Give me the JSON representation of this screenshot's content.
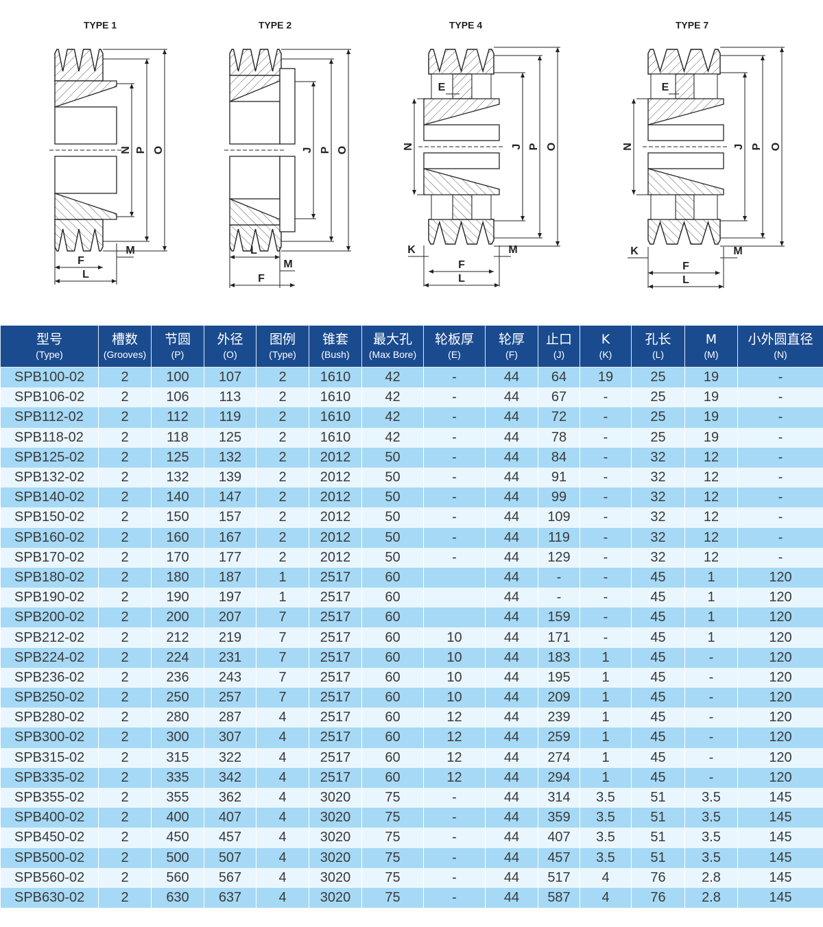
{
  "drawings": [
    {
      "title": "TYPE 1",
      "dims": [
        "N",
        "P",
        "O"
      ],
      "bottom": [
        "F",
        "L",
        "M"
      ]
    },
    {
      "title": "TYPE 2",
      "dims": [
        "J",
        "P",
        "O"
      ],
      "bottom": [
        "L",
        "M",
        "F"
      ]
    },
    {
      "title": "TYPE 4",
      "dims": [
        "N",
        "J",
        "P",
        "O"
      ],
      "bottom": [
        "E",
        "K",
        "M",
        "F",
        "L"
      ]
    },
    {
      "title": "TYPE 7",
      "dims": [
        "N",
        "J",
        "P",
        "O"
      ],
      "bottom": [
        "E",
        "K",
        "M",
        "F",
        "L"
      ]
    }
  ],
  "colors": {
    "header_bg": "#1a4b8f",
    "row_odd": "#a6d9f5",
    "row_even": "#eaf6fd"
  },
  "table": {
    "headers": [
      {
        "cn": "型号",
        "en": "(Type)"
      },
      {
        "cn": "槽数",
        "en": "(Grooves)"
      },
      {
        "cn": "节圆",
        "en": "(P)"
      },
      {
        "cn": "外径",
        "en": "(O)"
      },
      {
        "cn": "图例",
        "en": "(Type)"
      },
      {
        "cn": "锥套",
        "en": "(Bush)"
      },
      {
        "cn": "最大孔",
        "en": "(Max Bore)"
      },
      {
        "cn": "轮板厚",
        "en": "(E)"
      },
      {
        "cn": "轮厚",
        "en": "(F)"
      },
      {
        "cn": "止口",
        "en": "(J)"
      },
      {
        "cn": "K",
        "en": "(K)"
      },
      {
        "cn": "孔长",
        "en": "(L)"
      },
      {
        "cn": "M",
        "en": "(M)"
      },
      {
        "cn": "小外圆直径",
        "en": "(N)"
      }
    ],
    "rows": [
      [
        "SPB100-02",
        "2",
        "100",
        "107",
        "2",
        "1610",
        "42",
        "-",
        "44",
        "64",
        "19",
        "25",
        "19",
        "-"
      ],
      [
        "SPB106-02",
        "2",
        "106",
        "113",
        "2",
        "1610",
        "42",
        "-",
        "44",
        "67",
        "-",
        "25",
        "19",
        "-"
      ],
      [
        "SPB112-02",
        "2",
        "112",
        "119",
        "2",
        "1610",
        "42",
        "-",
        "44",
        "72",
        "-",
        "25",
        "19",
        "-"
      ],
      [
        "SPB118-02",
        "2",
        "118",
        "125",
        "2",
        "1610",
        "42",
        "-",
        "44",
        "78",
        "-",
        "25",
        "19",
        "-"
      ],
      [
        "SPB125-02",
        "2",
        "125",
        "132",
        "2",
        "2012",
        "50",
        "-",
        "44",
        "84",
        "-",
        "32",
        "12",
        "-"
      ],
      [
        "SPB132-02",
        "2",
        "132",
        "139",
        "2",
        "2012",
        "50",
        "-",
        "44",
        "91",
        "-",
        "32",
        "12",
        "-"
      ],
      [
        "SPB140-02",
        "2",
        "140",
        "147",
        "2",
        "2012",
        "50",
        "-",
        "44",
        "99",
        "-",
        "32",
        "12",
        "-"
      ],
      [
        "SPB150-02",
        "2",
        "150",
        "157",
        "2",
        "2012",
        "50",
        "-",
        "44",
        "109",
        "-",
        "32",
        "12",
        "-"
      ],
      [
        "SPB160-02",
        "2",
        "160",
        "167",
        "2",
        "2012",
        "50",
        "-",
        "44",
        "119",
        "-",
        "32",
        "12",
        "-"
      ],
      [
        "SPB170-02",
        "2",
        "170",
        "177",
        "2",
        "2012",
        "50",
        "-",
        "44",
        "129",
        "-",
        "32",
        "12",
        "-"
      ],
      [
        "SPB180-02",
        "2",
        "180",
        "187",
        "1",
        "2517",
        "60",
        "",
        "44",
        "-",
        "-",
        "45",
        "1",
        "120"
      ],
      [
        "SPB190-02",
        "2",
        "190",
        "197",
        "1",
        "2517",
        "60",
        "",
        "44",
        "-",
        "-",
        "45",
        "1",
        "120"
      ],
      [
        "SPB200-02",
        "2",
        "200",
        "207",
        "7",
        "2517",
        "60",
        "",
        "44",
        "159",
        "-",
        "45",
        "1",
        "120"
      ],
      [
        "SPB212-02",
        "2",
        "212",
        "219",
        "7",
        "2517",
        "60",
        "10",
        "44",
        "171",
        "-",
        "45",
        "1",
        "120"
      ],
      [
        "SPB224-02",
        "2",
        "224",
        "231",
        "7",
        "2517",
        "60",
        "10",
        "44",
        "183",
        "1",
        "45",
        "-",
        "120"
      ],
      [
        "SPB236-02",
        "2",
        "236",
        "243",
        "7",
        "2517",
        "60",
        "10",
        "44",
        "195",
        "1",
        "45",
        "-",
        "120"
      ],
      [
        "SPB250-02",
        "2",
        "250",
        "257",
        "7",
        "2517",
        "60",
        "10",
        "44",
        "209",
        "1",
        "45",
        "-",
        "120"
      ],
      [
        "SPB280-02",
        "2",
        "280",
        "287",
        "4",
        "2517",
        "60",
        "12",
        "44",
        "239",
        "1",
        "45",
        "-",
        "120"
      ],
      [
        "SPB300-02",
        "2",
        "300",
        "307",
        "4",
        "2517",
        "60",
        "12",
        "44",
        "259",
        "1",
        "45",
        "-",
        "120"
      ],
      [
        "SPB315-02",
        "2",
        "315",
        "322",
        "4",
        "2517",
        "60",
        "12",
        "44",
        "274",
        "1",
        "45",
        "-",
        "120"
      ],
      [
        "SPB335-02",
        "2",
        "335",
        "342",
        "4",
        "2517",
        "60",
        "12",
        "44",
        "294",
        "1",
        "45",
        "-",
        "120"
      ],
      [
        "SPB355-02",
        "2",
        "355",
        "362",
        "4",
        "3020",
        "75",
        "-",
        "44",
        "314",
        "3.5",
        "51",
        "3.5",
        "145"
      ],
      [
        "SPB400-02",
        "2",
        "400",
        "407",
        "4",
        "3020",
        "75",
        "-",
        "44",
        "359",
        "3.5",
        "51",
        "3.5",
        "145"
      ],
      [
        "SPB450-02",
        "2",
        "450",
        "457",
        "4",
        "3020",
        "75",
        "-",
        "44",
        "407",
        "3.5",
        "51",
        "3.5",
        "145"
      ],
      [
        "SPB500-02",
        "2",
        "500",
        "507",
        "4",
        "3020",
        "75",
        "-",
        "44",
        "457",
        "3.5",
        "51",
        "3.5",
        "145"
      ],
      [
        "SPB560-02",
        "2",
        "560",
        "567",
        "4",
        "3020",
        "75",
        "-",
        "44",
        "517",
        "4",
        "76",
        "2.8",
        "145"
      ],
      [
        "SPB630-02",
        "2",
        "630",
        "637",
        "4",
        "3020",
        "75",
        "-",
        "44",
        "587",
        "4",
        "76",
        "2.8",
        "145"
      ]
    ]
  }
}
